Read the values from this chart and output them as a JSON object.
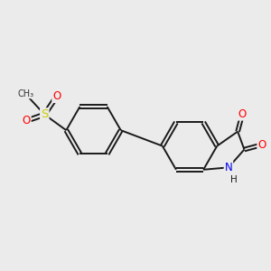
{
  "bg_color": "#ebebeb",
  "bond_color": "#1a1a1a",
  "bond_width": 1.4,
  "atom_colors": {
    "O": "#ff0000",
    "N": "#0000ee",
    "S": "#cccc00",
    "C": "#1a1a1a",
    "H": "#1a1a1a"
  },
  "font_size": 8.5,
  "fig_size": [
    3.0,
    3.0
  ],
  "dpi": 100,
  "xlim": [
    -3.8,
    3.8
  ],
  "ylim": [
    -3.2,
    3.2
  ]
}
